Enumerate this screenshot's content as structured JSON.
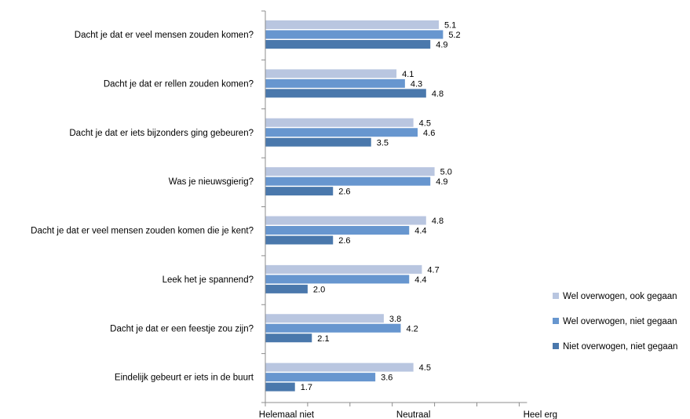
{
  "chart_data": {
    "type": "bar",
    "orientation": "horizontal",
    "categories": [
      "Dacht je dat er veel mensen zouden komen?",
      "Dacht je dat er rellen zouden komen?",
      "Dacht je dat er iets bijzonders ging gebeuren?",
      "Was je nieuwsgierig?",
      "Dacht je dat er veel mensen zouden komen die je kent?",
      "Leek het je spannend?",
      "Dacht je dat er een feestje zou zijn?",
      "Eindelijk gebeurt er iets in de buurt"
    ],
    "series": [
      {
        "name": "Wel overwogen, ook gegaan",
        "color": "#b9c6e0",
        "values": [
          5.1,
          4.1,
          4.5,
          5.0,
          4.8,
          4.7,
          3.8,
          4.5
        ],
        "labels": [
          "5.1",
          "4.1",
          "4.5",
          "5.0",
          "4.8",
          "4.7",
          "3.8",
          "4.5"
        ]
      },
      {
        "name": "Wel overwogen, niet gegaan",
        "color": "#6796cf",
        "values": [
          5.2,
          4.3,
          4.6,
          4.9,
          4.4,
          4.4,
          4.2,
          3.6
        ],
        "labels": [
          "5.2",
          "4.3",
          "4.6",
          "4.9",
          "4.4",
          "4.4",
          "4.2",
          "3.6"
        ]
      },
      {
        "name": "Niet overwogen, niet gegaan",
        "color": "#4a78ac",
        "values": [
          4.9,
          4.8,
          3.5,
          2.6,
          2.6,
          2.0,
          2.1,
          1.7
        ],
        "labels": [
          "4.9",
          "4.8",
          "3.5",
          "2.6",
          "2.6",
          "2.0",
          "2.1",
          "1.7"
        ]
      }
    ],
    "xlim": [
      1,
      7
    ],
    "x_ticks": [
      1,
      2,
      3,
      4,
      5,
      6,
      7
    ],
    "x_tick_labels": [
      {
        "value": 1.5,
        "label": "Helemaal niet"
      },
      {
        "value": 4.5,
        "label": "Neutraal"
      },
      {
        "value": 7.5,
        "label": "Heel erg"
      }
    ],
    "legend_position": "right",
    "grid": false
  }
}
